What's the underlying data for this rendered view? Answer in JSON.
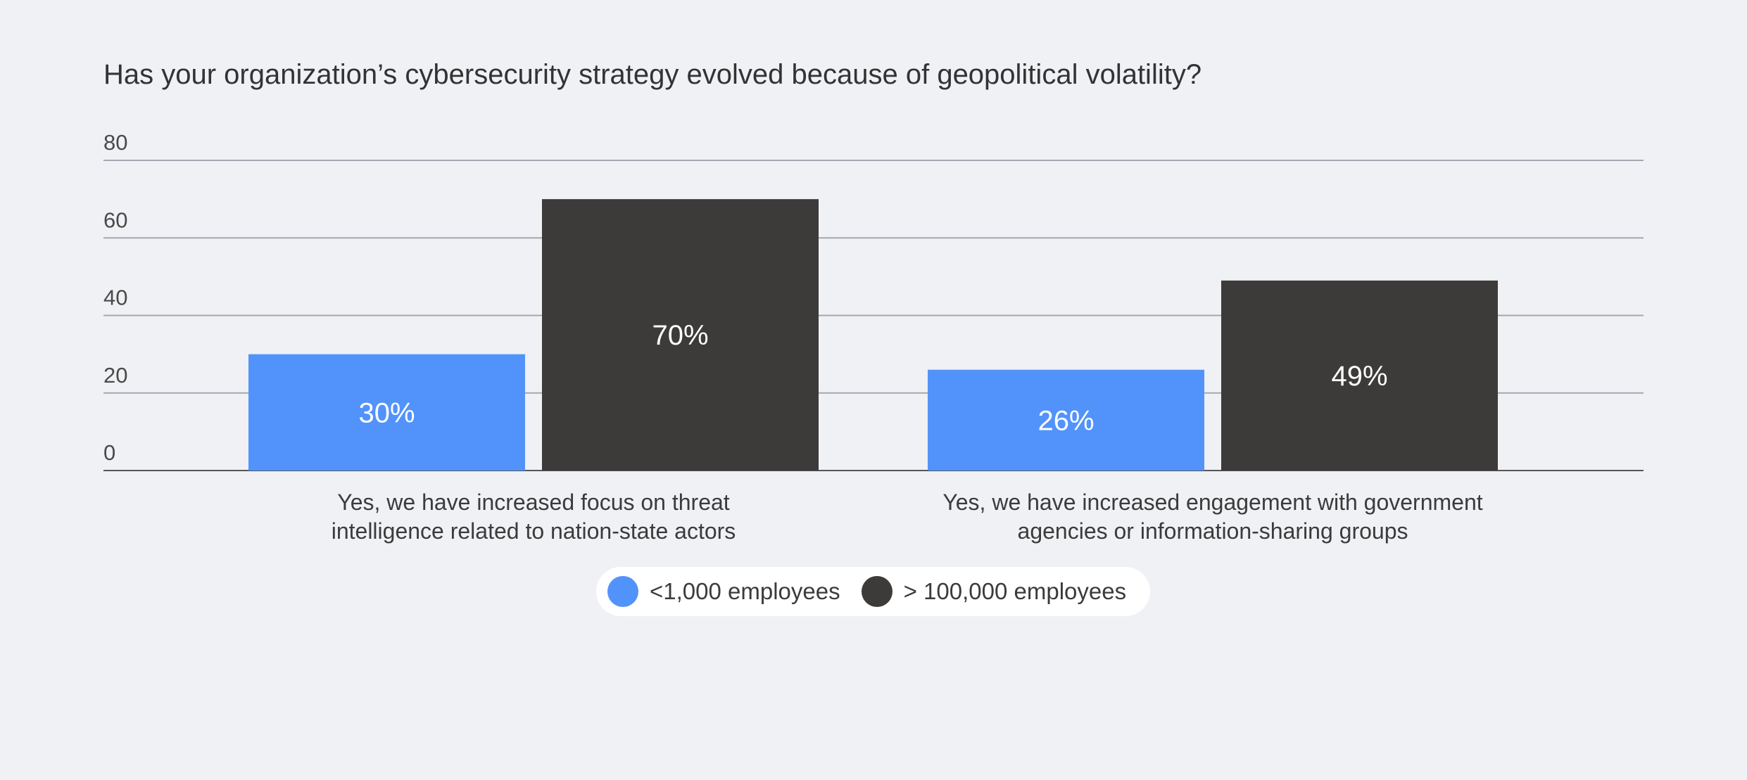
{
  "chart_data": {
    "type": "bar",
    "title": "Has your organization’s cybersecurity strategy evolved because of geopolitical volatility?",
    "categories": [
      [
        "Yes, we have increased focus on threat",
        "intelligence related to nation-state actors"
      ],
      [
        "Yes, we have increased engagement with government",
        "agencies or information-sharing groups"
      ]
    ],
    "series": [
      {
        "name": "<1,000 employees",
        "color": "#5293fb",
        "values": [
          30,
          26
        ],
        "labels": [
          "30%",
          "26%"
        ]
      },
      {
        "name": "> 100,000 employees",
        "color": "#3c3b3a",
        "values": [
          70,
          49
        ],
        "labels": [
          "70%",
          "49%"
        ]
      }
    ],
    "yticks": [
      0,
      20,
      40,
      60,
      80
    ],
    "ylim": [
      0,
      80
    ],
    "grid": true,
    "legend_position": "bottom-center",
    "xlabel": "",
    "ylabel": ""
  }
}
